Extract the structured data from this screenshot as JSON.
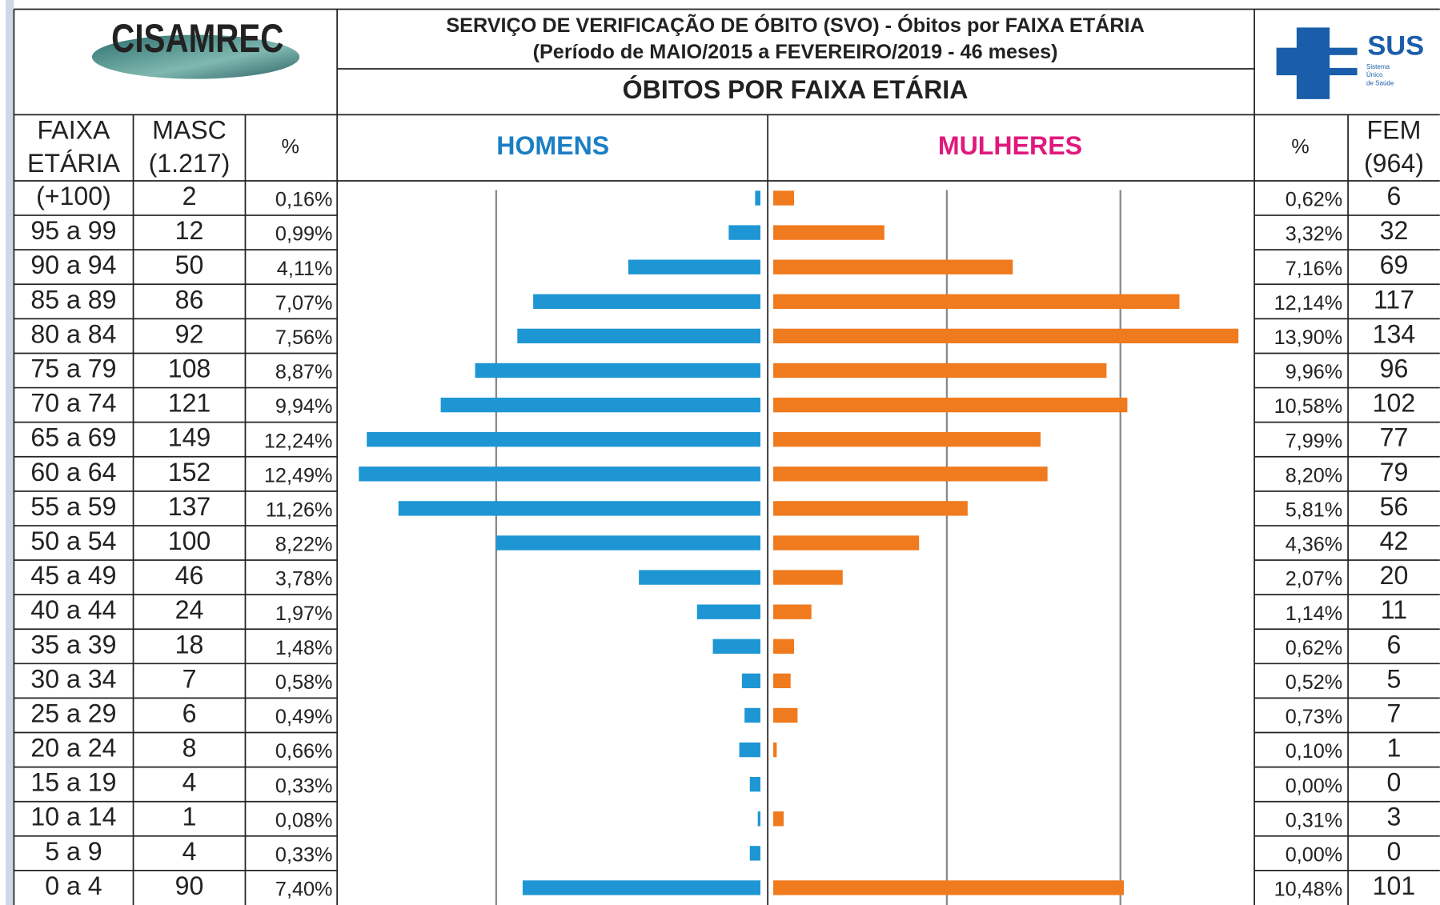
{
  "chart_data": {
    "type": "pyramid",
    "org": "CISAMREC",
    "sus": "SUS",
    "sus_sub": [
      "Sistema",
      "Único",
      "de Saúde"
    ],
    "title": "SERVIÇO DE VERIFICAÇÃO DE ÓBITO (SVO) - Óbitos por FAIXA ETÁRIA",
    "subtitle": "(Período de MAIO/2015 a FEVEREIRO/2019 - 46 meses)",
    "heading": "ÓBITOS POR FAIXA ETÁRIA",
    "headers": [
      [
        "FAIXA",
        "ETÁRIA"
      ],
      [
        "MASC",
        "(1.217)"
      ],
      [
        "%"
      ],
      [
        "%"
      ],
      [
        "FEM",
        "(964)"
      ]
    ],
    "categories": [
      "(+100)",
      "95 a 99",
      "90 a 94",
      "85 a 89",
      "80 a 84",
      "75 a 79",
      "70 a 74",
      "65 a 69",
      "60 a 64",
      "55 a 59",
      "50 a 54",
      "45 a 49",
      "40 a 44",
      "35 a 39",
      "30 a 34",
      "25 a 29",
      "20 a 24",
      "15 a 19",
      "10 a 14",
      "5 a 9",
      "0 a 4"
    ],
    "series": [
      {
        "name": "HOMENS",
        "color": "#1e96d4",
        "name_color": "#1b7fc4",
        "xlim": [
          0,
          155
        ],
        "xticks": [
          100
        ],
        "values": [
          2,
          12,
          50,
          86,
          92,
          108,
          121,
          149,
          152,
          137,
          100,
          46,
          24,
          18,
          7,
          6,
          8,
          4,
          1,
          4,
          90
        ],
        "shares": [
          "0,16%",
          "0,99%",
          "4,11%",
          "7,07%",
          "7,56%",
          "8,87%",
          "9,94%",
          "12,24%",
          "12,49%",
          "11,26%",
          "8,22%",
          "3,78%",
          "1,97%",
          "1,48%",
          "0,58%",
          "0,49%",
          "0,66%",
          "0,33%",
          "0,08%",
          "0,33%",
          "7,40%"
        ]
      },
      {
        "name": "MULHERES",
        "color": "#f07a1e",
        "name_color": "#e0197d",
        "xlim": [
          0,
          137
        ],
        "xticks": [
          50,
          100
        ],
        "values": [
          6,
          32,
          69,
          117,
          134,
          96,
          102,
          77,
          79,
          56,
          42,
          20,
          11,
          6,
          5,
          7,
          1,
          0,
          3,
          0,
          101
        ],
        "shares": [
          "0,62%",
          "3,32%",
          "7,16%",
          "12,14%",
          "13,90%",
          "9,96%",
          "10,58%",
          "7,99%",
          "8,20%",
          "5,81%",
          "4,36%",
          "2,07%",
          "1,14%",
          "0,62%",
          "0,52%",
          "0,73%",
          "0,10%",
          "0,00%",
          "0,31%",
          "0,00%",
          "10,48%"
        ]
      }
    ]
  }
}
